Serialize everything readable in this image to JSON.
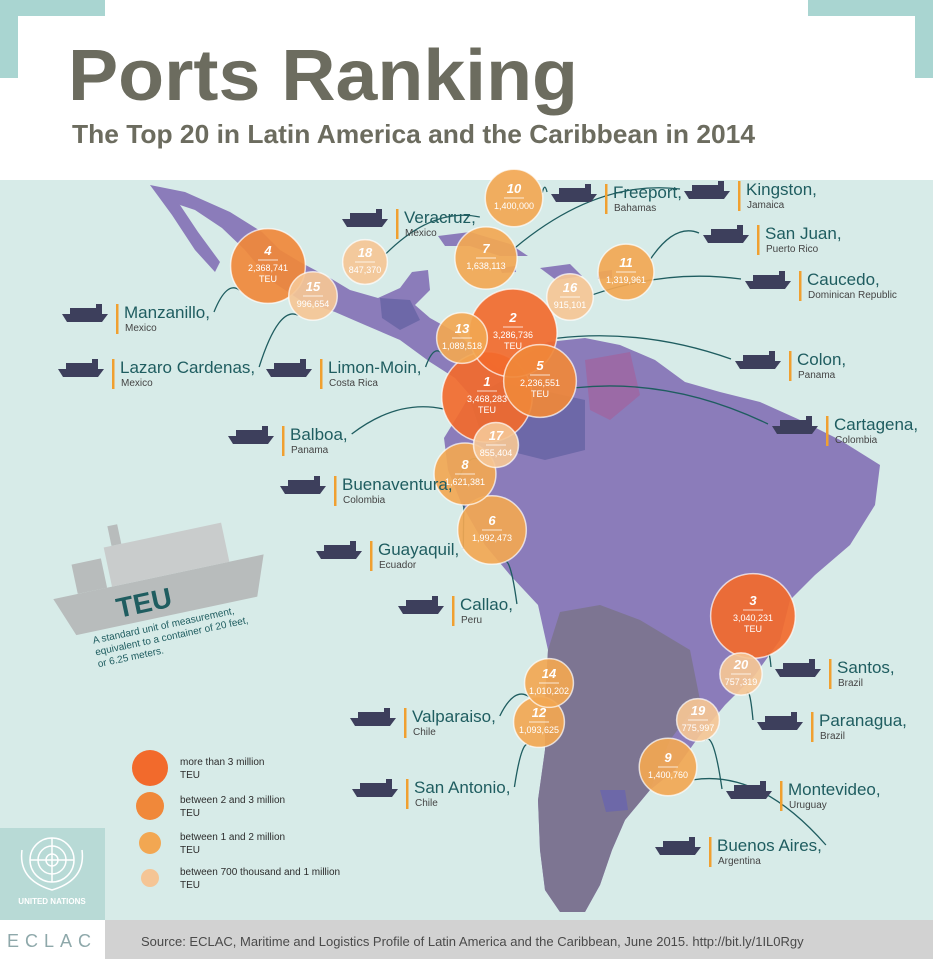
{
  "header": {
    "title": "Ports Ranking",
    "subtitle": "The Top 20 in Latin America and the Caribbean in 2014"
  },
  "ports": [
    {
      "rank": 1,
      "teu": "3,468,283",
      "unit": "TEU",
      "name": "Balboa,",
      "country": "Panama",
      "color": "#f26a2c"
    },
    {
      "rank": 2,
      "teu": "3,286,736",
      "unit": "TEU",
      "name": "Colon,",
      "country": "Panama",
      "color": "#f26a2c"
    },
    {
      "rank": 3,
      "teu": "3,040,231",
      "unit": "TEU",
      "name": "Santos,",
      "country": "Brazil",
      "color": "#f26a2c"
    },
    {
      "rank": 4,
      "teu": "2,368,741",
      "unit": "TEU",
      "name": "Manzanillo,",
      "country": "Mexico",
      "color": "#f0883a"
    },
    {
      "rank": 5,
      "teu": "2,236,551",
      "unit": "TEU",
      "name": "Cartagena,",
      "country": "Colombia",
      "color": "#f0883a"
    },
    {
      "rank": 6,
      "teu": "1,992,473",
      "name": "Callao,",
      "country": "Peru",
      "color": "#f2a752"
    },
    {
      "rank": 7,
      "teu": "1,638,113",
      "name": "Kingston,",
      "country": "Jamaica",
      "color": "#f2a752"
    },
    {
      "rank": 8,
      "teu": "1,621,381",
      "name": "Guayaquil,",
      "country": "Ecuador",
      "color": "#f2a752"
    },
    {
      "rank": 9,
      "teu": "1,400,760",
      "name": "Buenos Aires,",
      "country": "Argentina",
      "color": "#f2a752"
    },
    {
      "rank": 10,
      "teu": "1,400,000",
      "name": "Freeport,",
      "country": "Bahamas",
      "color": "#f2a752"
    },
    {
      "rank": 11,
      "teu": "1,319,961",
      "name": "San Juan,",
      "country": "Puerto Rico",
      "color": "#f2a752"
    },
    {
      "rank": 12,
      "teu": "1,093,625",
      "name": "San Antonio,",
      "country": "Chile",
      "color": "#f2a752"
    },
    {
      "rank": 13,
      "teu": "1,089,518",
      "name": "Limon-Moin,",
      "country": "Costa Rica",
      "color": "#f2a752"
    },
    {
      "rank": 14,
      "teu": "1,010,202",
      "name": "Valparaiso,",
      "country": "Chile",
      "color": "#f2a752"
    },
    {
      "rank": 15,
      "teu": "996,654",
      "name": "Lazaro Cardenas,",
      "country": "Mexico",
      "color": "#f5c595"
    },
    {
      "rank": 16,
      "teu": "915,101",
      "name": "Caucedo,",
      "country": "Dominican Republic",
      "color": "#f5c595"
    },
    {
      "rank": 17,
      "teu": "855,404",
      "name": "Buenaventura,",
      "country": "Colombia",
      "color": "#f5c595"
    },
    {
      "rank": 18,
      "teu": "847,370",
      "name": "Veracruz,",
      "country": "Mexico",
      "color": "#f5c595"
    },
    {
      "rank": 19,
      "teu": "775,997",
      "name": "Montevideo,",
      "country": "Uruguay",
      "color": "#f5c595"
    },
    {
      "rank": 20,
      "teu": "757,319",
      "name": "Paranagua,",
      "country": "Brazil",
      "color": "#f5c595"
    }
  ],
  "legend": [
    {
      "label": [
        "more than 3 million",
        "TEU"
      ],
      "color": "#f26a2c"
    },
    {
      "label": [
        "between 2 and 3 million",
        "TEU"
      ],
      "color": "#f0883a"
    },
    {
      "label": [
        "between 1 and 2 million",
        "TEU"
      ],
      "color": "#f2a752"
    },
    {
      "label": [
        "between 700 thousand and 1 million",
        "TEU"
      ],
      "color": "#f5c595"
    }
  ],
  "teu_note": {
    "title": "TEU",
    "lines": [
      "A standard unit of measurement,",
      "equivalent to a container of 20 feet,",
      "or 6.25 meters."
    ]
  },
  "logo": {
    "org": "UNITED NATIONS",
    "agency": "ECLAC"
  },
  "footer": {
    "source": "Source: ECLAC, Maritime and Logistics Profile of Latin America and the Caribbean, June 2015. http://bit.ly/1IL0Rgy"
  }
}
